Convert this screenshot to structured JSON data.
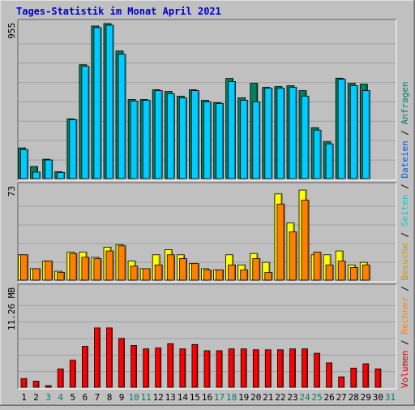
{
  "chart_data": {
    "type": "bar",
    "title": "Tages-Statistik im Monat April 2021",
    "categories": [
      "1",
      "2",
      "3",
      "4",
      "5",
      "6",
      "7",
      "8",
      "9",
      "10",
      "11",
      "12",
      "13",
      "14",
      "15",
      "16",
      "17",
      "18",
      "19",
      "20",
      "21",
      "22",
      "23",
      "24",
      "25",
      "26",
      "27",
      "28",
      "29",
      "30",
      "31"
    ],
    "weekend_days": [
      "3",
      "4",
      "10",
      "11",
      "17",
      "18",
      "24",
      "25",
      "31"
    ],
    "panels": [
      {
        "name": "top",
        "max_label": "955",
        "ylim": [
          0,
          955
        ],
        "series": [
          {
            "name": "Anfragen",
            "color": "#008060",
            "values": [
              190,
              75,
              120,
              42,
              370,
              705,
              945,
              960,
              790,
              490,
              490,
              550,
              540,
              510,
              550,
              485,
              470,
              620,
              500,
              590,
              565,
              570,
              575,
              545,
              315,
              228,
              622,
              590,
              585,
              null,
              null
            ]
          },
          {
            "name": "Dateien",
            "color": "#00ccff",
            "values": [
              180,
              40,
              115,
              38,
              365,
              695,
              935,
              950,
              770,
              480,
              485,
              545,
              525,
              500,
              545,
              475,
              465,
              600,
              485,
              475,
              560,
              560,
              565,
              510,
              300,
              215,
              615,
              575,
              545,
              null,
              null
            ]
          }
        ]
      },
      {
        "name": "middle",
        "max_label": "73",
        "ylim": [
          0,
          73
        ],
        "series": [
          {
            "name": "Seiten",
            "color": "#ffff00",
            "values": [
              20,
              9,
              15,
              7,
              22,
              22,
              18,
              26,
              28,
              15,
              9,
              20,
              24,
              20,
              13,
              9,
              8,
              20,
              12,
              21,
              14,
              68,
              45,
              71,
              20,
              20,
              23,
              12,
              14,
              null,
              null
            ]
          },
          {
            "name": "Besuche",
            "color": "#ff8000",
            "values": [
              20,
              9,
              15,
              6,
              21,
              18,
              17,
              23,
              27,
              11,
              9,
              12,
              20,
              17,
              13,
              8,
              8,
              12,
              8,
              17,
              6,
              60,
              38,
              63,
              22,
              12,
              15,
              10,
              12,
              null,
              null
            ]
          }
        ]
      },
      {
        "name": "bottom",
        "max_label": "11.26 MB",
        "ylim": [
          0,
          11.26
        ],
        "series": [
          {
            "name": "Volumen",
            "color": "#ff0000",
            "values": [
              1.0,
              0.7,
              0.2,
              2.1,
              3.1,
              4.7,
              6.8,
              6.8,
              5.6,
              4.8,
              4.4,
              4.5,
              5.0,
              4.4,
              4.9,
              4.2,
              4.2,
              4.4,
              4.4,
              4.3,
              4.3,
              4.3,
              4.4,
              4.4,
              3.9,
              2.8,
              1.2,
              2.2,
              2.7,
              2.1,
              null
            ]
          }
        ]
      }
    ],
    "right_legend": [
      {
        "label": "Volumen",
        "color": "#cc0000"
      },
      {
        "label": "Rechner",
        "color": "#ff8000"
      },
      {
        "label": "Besuche",
        "color": "#cc9900"
      },
      {
        "label": "Seiten",
        "color": "#00cccc"
      },
      {
        "label": "Dateien",
        "color": "#0055dd"
      },
      {
        "label": "Anfragen",
        "color": "#008060"
      }
    ],
    "legend_separator": " / "
  }
}
